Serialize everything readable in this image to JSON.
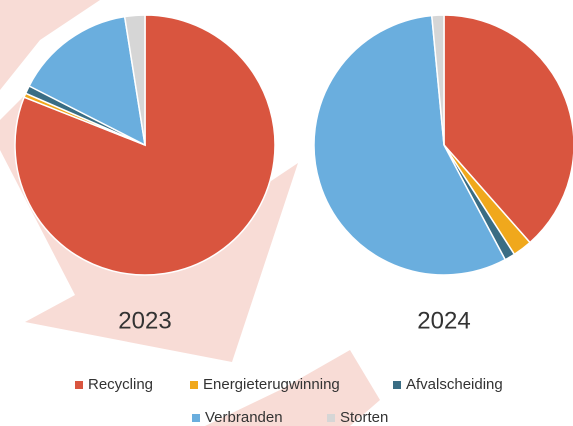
{
  "chart_data": [
    {
      "type": "pie",
      "title": "2023",
      "categories": [
        "Recycling",
        "Energieterugwinning",
        "Afvalscheiding",
        "Verbranden",
        "Storten"
      ],
      "values": [
        81,
        0.5,
        1,
        15,
        2.5
      ],
      "colors": [
        "#d9553f",
        "#f0a81c",
        "#3a6d84",
        "#6aaede",
        "#d6d6d6"
      ]
    },
    {
      "type": "pie",
      "title": "2024",
      "categories": [
        "Recycling",
        "Energieterugwinning",
        "Afvalscheiding",
        "Verbranden",
        "Storten"
      ],
      "values": [
        38.5,
        2.4,
        1.3,
        56.3,
        1.5
      ],
      "colors": [
        "#d9553f",
        "#f0a81c",
        "#3a6d84",
        "#6aaede",
        "#d6d6d6"
      ]
    }
  ]
}
